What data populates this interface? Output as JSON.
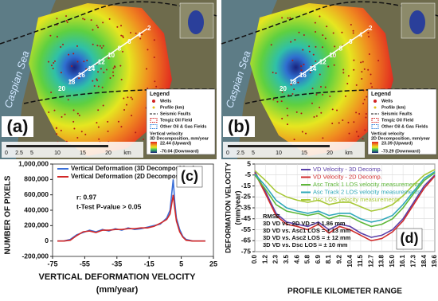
{
  "maps": [
    {
      "panel": "(a)",
      "sea": "Caspian Sea",
      "profile_marks": [
        "2",
        "4",
        "6",
        "8",
        "10",
        "12",
        "14",
        "16",
        "18",
        "20"
      ],
      "legend": {
        "title": "Legend",
        "items": [
          "Wells",
          "Profile (km)",
          "Seismic Faults",
          "Tengiz Oil Field",
          "Other Oil & Gas Fields"
        ],
        "velocity": "Vertical velocity",
        "method": "3D Decomposition, mm/year",
        "high": "22.44 (Upward)",
        "low": "-70.04 (Downward)"
      },
      "scale": [
        "0",
        "2.5",
        "5",
        "10",
        "15",
        "20",
        "km"
      ]
    },
    {
      "panel": "(b)",
      "sea": "Caspian Sea",
      "profile_marks": [
        "2",
        "4",
        "6",
        "8",
        "10",
        "12",
        "14",
        "16",
        "18",
        "20"
      ],
      "legend": {
        "title": "Legend",
        "items": [
          "Wells",
          "Profile (km)",
          "Seismic Faults",
          "Tengiz Oil Field",
          "Other Oil & Gas Fields"
        ],
        "velocity": "Vertical velocity",
        "method": "2D Decomposition, mm/year",
        "high": "23.39 (Upward)",
        "low": "-73.29 (Downward)"
      },
      "scale": [
        "0",
        "2.5",
        "5",
        "10",
        "15",
        "20",
        "km"
      ]
    }
  ],
  "chart_data": [
    {
      "type": "line",
      "panel": "(c)",
      "ylabel": "NUMBER OF PIXELS",
      "xlabel": [
        "VERTICAL DEFORMATION VELOCITY",
        "(mm/year)"
      ],
      "annotations": [
        "r: 0.97",
        "t-Test P-value > 0.05"
      ],
      "legend": "upper left",
      "grid": false,
      "x": [
        -72,
        -68,
        -64,
        -60,
        -56,
        -52,
        -48,
        -44,
        -40,
        -36,
        -32,
        -28,
        -24,
        -20,
        -16,
        -12,
        -8,
        -4,
        -2,
        0,
        1,
        2,
        4,
        6,
        8,
        12,
        16,
        20
      ],
      "series": [
        {
          "name": "Vertical Deformation (3D Decomposition)",
          "color": "#3a6fd8",
          "values": [
            0,
            0,
            20000,
            80000,
            110000,
            140000,
            120000,
            150000,
            130000,
            160000,
            140000,
            170000,
            150000,
            160000,
            180000,
            200000,
            220000,
            300000,
            400000,
            800000,
            500000,
            300000,
            150000,
            60000,
            20000,
            0,
            0,
            0
          ]
        },
        {
          "name": "Vertical Deformation (2D Decomposition)",
          "color": "#d22828",
          "values": [
            0,
            0,
            10000,
            70000,
            120000,
            130000,
            110000,
            140000,
            140000,
            150000,
            150000,
            160000,
            160000,
            170000,
            170000,
            190000,
            230000,
            280000,
            350000,
            600000,
            420000,
            260000,
            120000,
            50000,
            10000,
            0,
            0,
            0
          ]
        }
      ],
      "xlim": [
        -75,
        25
      ],
      "xticks": [
        -75,
        -55,
        -35,
        -15,
        5,
        25
      ],
      "ylim": [
        -200000,
        1000000
      ],
      "yticks": [
        {
          "value": -200000,
          "label": "-200,000"
        },
        0,
        {
          "value": 200000,
          "label": "200,000"
        },
        {
          "value": 400000,
          "label": "400,000"
        },
        {
          "value": 600000,
          "label": "600,000"
        },
        {
          "value": 800000,
          "label": "800,000"
        },
        {
          "value": 1000000,
          "label": "1,000,000"
        }
      ]
    },
    {
      "type": "line",
      "panel": "(d)",
      "ylabel": [
        "DEFORMATION VELOCITY",
        "(mm/year)"
      ],
      "xlabel": [
        "PROFILE KILOMETER RANGE"
      ],
      "annotations": [
        "RMSE",
        "3D VD vs. 2D VD = ± 1.86 mm",
        "3D VD vs. Asc1 LOS = ± 13 mm",
        "3D VD vs. Asc2 LOS = ± 12 mm",
        "3D VD vs. Dsc LOS = ± 10 mm"
      ],
      "legend": "upper center",
      "grid": true,
      "categories": [
        "0.0",
        "1.2",
        "2.3",
        "3.5",
        "4.6",
        "5.8",
        "6.9",
        "8.1",
        "9.2",
        "10.4",
        "11.5",
        "12.7",
        "13.8",
        "15.0",
        "16.1",
        "17.3",
        "18.4",
        "19.6"
      ],
      "series": [
        {
          "name": "VD Velocity - 3D Decomp.",
          "color": "#5b3fa8",
          "values": [
            -2,
            -20,
            -40,
            -48,
            -50,
            -52,
            -48,
            -55,
            -50,
            -52,
            -58,
            -62,
            -60,
            -55,
            -45,
            -30,
            -15,
            -5
          ]
        },
        {
          "name": "VD Velocity - 2D Decomp.",
          "color": "#d02c2c",
          "values": [
            -3,
            -22,
            -42,
            -50,
            -52,
            -55,
            -50,
            -58,
            -52,
            -55,
            -60,
            -65,
            -63,
            -57,
            -47,
            -32,
            -17,
            -6
          ]
        },
        {
          "name": "Asc Track 1 LOS velocity measurements",
          "color": "#5fb83a",
          "values": [
            -5,
            -18,
            -32,
            -38,
            -40,
            -42,
            -40,
            -45,
            -42,
            -43,
            -48,
            -52,
            -50,
            -45,
            -35,
            -22,
            -10,
            -3
          ]
        },
        {
          "name": "Asc Track 2 LOS velocity measurements",
          "color": "#2fa8b8",
          "values": [
            -4,
            -15,
            -28,
            -35,
            -38,
            -40,
            -38,
            -42,
            -40,
            -40,
            -45,
            -48,
            -46,
            -42,
            -32,
            -20,
            -8,
            -2
          ]
        },
        {
          "name": "Dsc LOS velocity measurements",
          "color": "#a8c838",
          "values": [
            -1,
            -10,
            -20,
            -25,
            -28,
            -30,
            -28,
            -32,
            -30,
            -30,
            -34,
            -38,
            -36,
            -32,
            -24,
            -14,
            -5,
            0
          ]
        }
      ],
      "ylim": [
        -75,
        5
      ],
      "yticks": [
        -75,
        -65,
        -55,
        -45,
        -35,
        -25,
        -15,
        -5,
        5
      ]
    }
  ]
}
